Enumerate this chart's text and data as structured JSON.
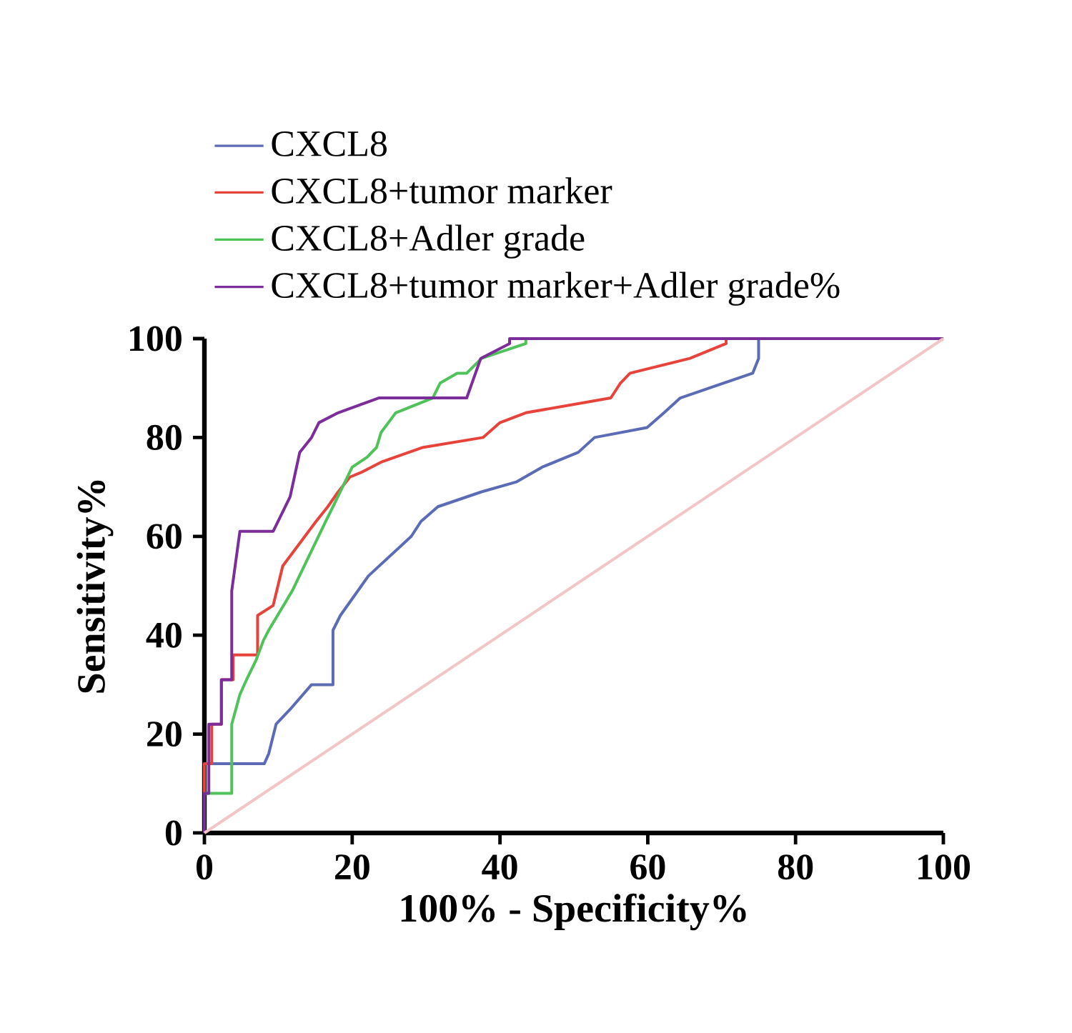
{
  "chart_data": {
    "type": "line",
    "xlabel": "100% - Specificity%",
    "ylabel": "Sensitivity%",
    "xlim": [
      0,
      100
    ],
    "ylim": [
      0,
      100
    ],
    "xticks": [
      0,
      20,
      40,
      60,
      80,
      100
    ],
    "yticks": [
      0,
      20,
      40,
      60,
      80,
      100
    ],
    "legend": "top",
    "marker": "none",
    "line_style": "solid",
    "series": [
      {
        "name": "CXCL8",
        "color": "#5b6bb5",
        "x": [
          0,
          0,
          8.1,
          8.7,
          9.7,
          11.6,
          14.5,
          17.4,
          17.4,
          18.4,
          22.2,
          28,
          29.3,
          31.6,
          37.5,
          42.2,
          45.7,
          50.6,
          52.8,
          59.9,
          62.2,
          64.4,
          74.2,
          75,
          75,
          100
        ],
        "values": [
          0,
          14,
          14,
          16,
          22,
          25,
          30,
          30,
          41,
          44,
          52,
          60,
          63,
          66,
          69,
          71,
          74,
          77,
          80,
          82,
          85,
          88,
          93,
          96,
          100,
          100
        ]
      },
      {
        "name": "CXCL8+tumor marker",
        "color": "#e8433a",
        "x": [
          0,
          0,
          1,
          1,
          2.3,
          2.3,
          3.9,
          3.9,
          7.2,
          7.2,
          9.3,
          10.6,
          15.1,
          16.7,
          18.1,
          19.7,
          21.3,
          23.9,
          29.6,
          37.7,
          40,
          43.5,
          55,
          56.3,
          57.6,
          65.7,
          70.6,
          70.6
        ],
        "values": [
          0,
          14,
          14,
          22,
          22,
          31,
          31,
          36,
          36,
          44,
          46,
          54,
          63,
          66,
          69,
          72,
          73,
          75,
          78,
          80,
          83,
          85,
          88,
          91,
          93,
          96,
          99,
          100
        ]
      },
      {
        "name": "CXCL8+Adler grade",
        "color": "#4fc25a",
        "x": [
          0,
          0,
          1.5,
          3.7,
          3.7,
          4.8,
          5.7,
          7,
          8,
          8.7,
          11.9,
          16.4,
          17.4,
          20,
          22,
          23.3,
          23.9,
          24.9,
          25.9,
          30.9,
          31.9,
          34.2,
          35.5,
          37.5,
          43.5,
          43.5
        ],
        "values": [
          0,
          8,
          8,
          8,
          22,
          28,
          31,
          35,
          39,
          41,
          49,
          63,
          66,
          74,
          76,
          78,
          81,
          83,
          85,
          88,
          91,
          93,
          93,
          96,
          99,
          100
        ]
      },
      {
        "name": "CXCL8+tumor marker+Adler grade%",
        "color": "#7b2d9a",
        "x": [
          0,
          0,
          0.6,
          0.6,
          2.3,
          2.3,
          3.7,
          3.7,
          4.8,
          9.3,
          11.6,
          12.9,
          14.5,
          15.5,
          18.1,
          23.6,
          35.5,
          37.4,
          41.3,
          41.3,
          100
        ],
        "values": [
          0,
          8,
          8,
          22,
          22,
          31,
          31,
          49,
          61,
          61,
          68,
          77,
          80,
          83,
          85,
          88,
          88,
          96,
          99,
          100,
          100
        ]
      },
      {
        "color": "#f2c6c6",
        "x": [
          0,
          100
        ],
        "values": [
          0,
          100
        ]
      }
    ]
  }
}
